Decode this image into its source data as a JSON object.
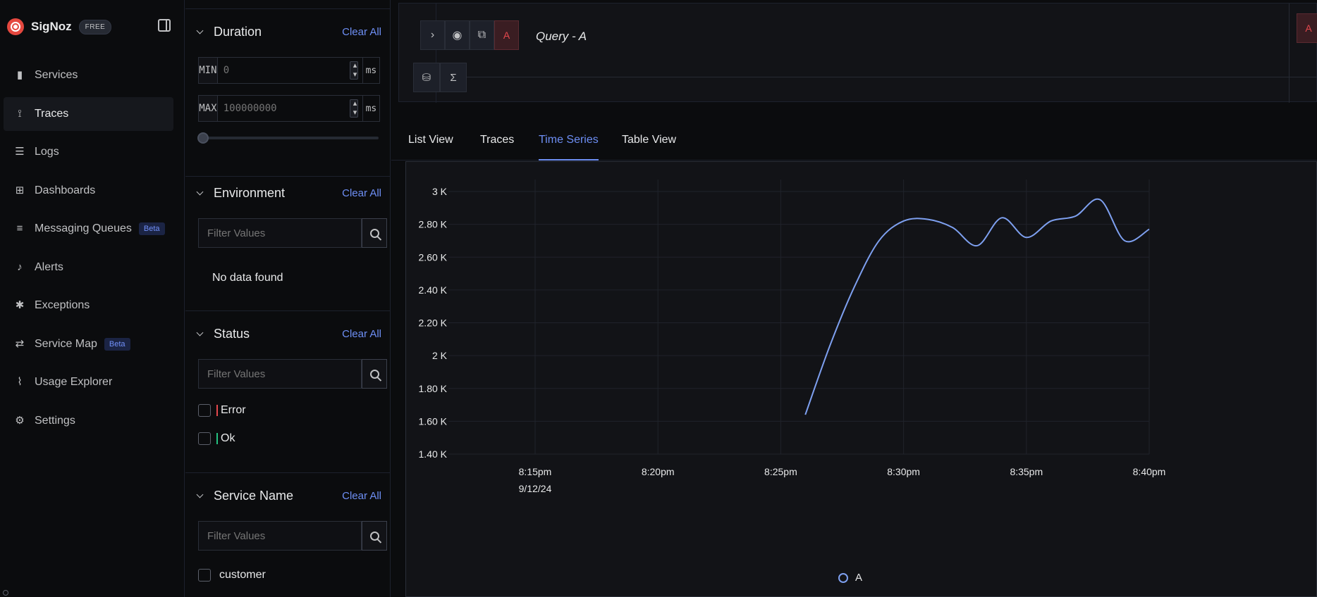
{
  "brand": {
    "name": "SigNoz",
    "badge": "FREE"
  },
  "nav": [
    {
      "label": "Services",
      "icon": "bar-chart-icon",
      "glyph": "▮"
    },
    {
      "label": "Traces",
      "icon": "draft-icon",
      "glyph": "⟟"
    },
    {
      "label": "Logs",
      "icon": "scroll-icon",
      "glyph": "☰"
    },
    {
      "label": "Dashboards",
      "icon": "grid-icon",
      "glyph": "⊞"
    },
    {
      "label": "Messaging Queues",
      "icon": "list-icon",
      "glyph": "≡",
      "badge": "Beta"
    },
    {
      "label": "Alerts",
      "icon": "bell-icon",
      "glyph": "♪"
    },
    {
      "label": "Exceptions",
      "icon": "bug-icon",
      "glyph": "✱"
    },
    {
      "label": "Service Map",
      "icon": "route-icon",
      "glyph": "⇄",
      "badge": "Beta"
    },
    {
      "label": "Usage Explorer",
      "icon": "line-chart-icon",
      "glyph": "⌇"
    },
    {
      "label": "Settings",
      "icon": "gear-icon",
      "glyph": "⚙"
    }
  ],
  "nav_active": "Traces",
  "filters": {
    "duration": {
      "title": "Duration",
      "clear": "Clear All",
      "min_label": "MIN",
      "min_placeholder": "0",
      "max_label": "MAX",
      "max_placeholder": "100000000",
      "unit": "ms"
    },
    "environment": {
      "title": "Environment",
      "clear": "Clear All",
      "placeholder": "Filter Values",
      "empty": "No data found"
    },
    "status": {
      "title": "Status",
      "clear": "Clear All",
      "placeholder": "Filter Values",
      "options": [
        {
          "label": "Error",
          "color": "#e5484d"
        },
        {
          "label": "Ok",
          "color": "#25c281"
        }
      ]
    },
    "service_name": {
      "title": "Service Name",
      "clear": "Clear All",
      "placeholder": "Filter Values",
      "options": [
        "customer"
      ]
    }
  },
  "query": {
    "letter": "A",
    "name": "Query - A"
  },
  "tabs": [
    "List View",
    "Traces",
    "Time Series",
    "Table View"
  ],
  "active_tab": "Time Series",
  "colors": {
    "accent": "#6e8ff5",
    "series": "#7ea0f0",
    "error": "#e5484d",
    "ok": "#25c281"
  },
  "chart_data": {
    "type": "line",
    "title": "",
    "xlabel": "",
    "ylabel": "",
    "x_ticks": [
      "8:15pm",
      "8:20pm",
      "8:25pm",
      "8:30pm",
      "8:35pm",
      "8:40pm"
    ],
    "x_date_label": "9/12/24",
    "y_ticks": [
      "1.40 K",
      "1.60 K",
      "1.80 K",
      "2 K",
      "2.20 K",
      "2.40 K",
      "2.60 K",
      "2.80 K",
      "3 K"
    ],
    "ylim": [
      1400,
      3000
    ],
    "xlim": [
      "8:15pm",
      "8:40pm"
    ],
    "series": [
      {
        "name": "A",
        "x": [
          "8:26pm",
          "8:27pm",
          "8:28pm",
          "8:29pm",
          "8:30pm",
          "8:31pm",
          "8:32pm",
          "8:33pm",
          "8:34pm",
          "8:35pm",
          "8:36pm",
          "8:37pm",
          "8:38pm",
          "8:39pm",
          "8:40pm"
        ],
        "values": [
          1640,
          2060,
          2420,
          2700,
          2820,
          2830,
          2780,
          2670,
          2840,
          2720,
          2820,
          2850,
          2950,
          2700,
          2770
        ]
      }
    ],
    "legend": [
      "A"
    ],
    "legend_position": "bottom-center",
    "grid": true
  }
}
